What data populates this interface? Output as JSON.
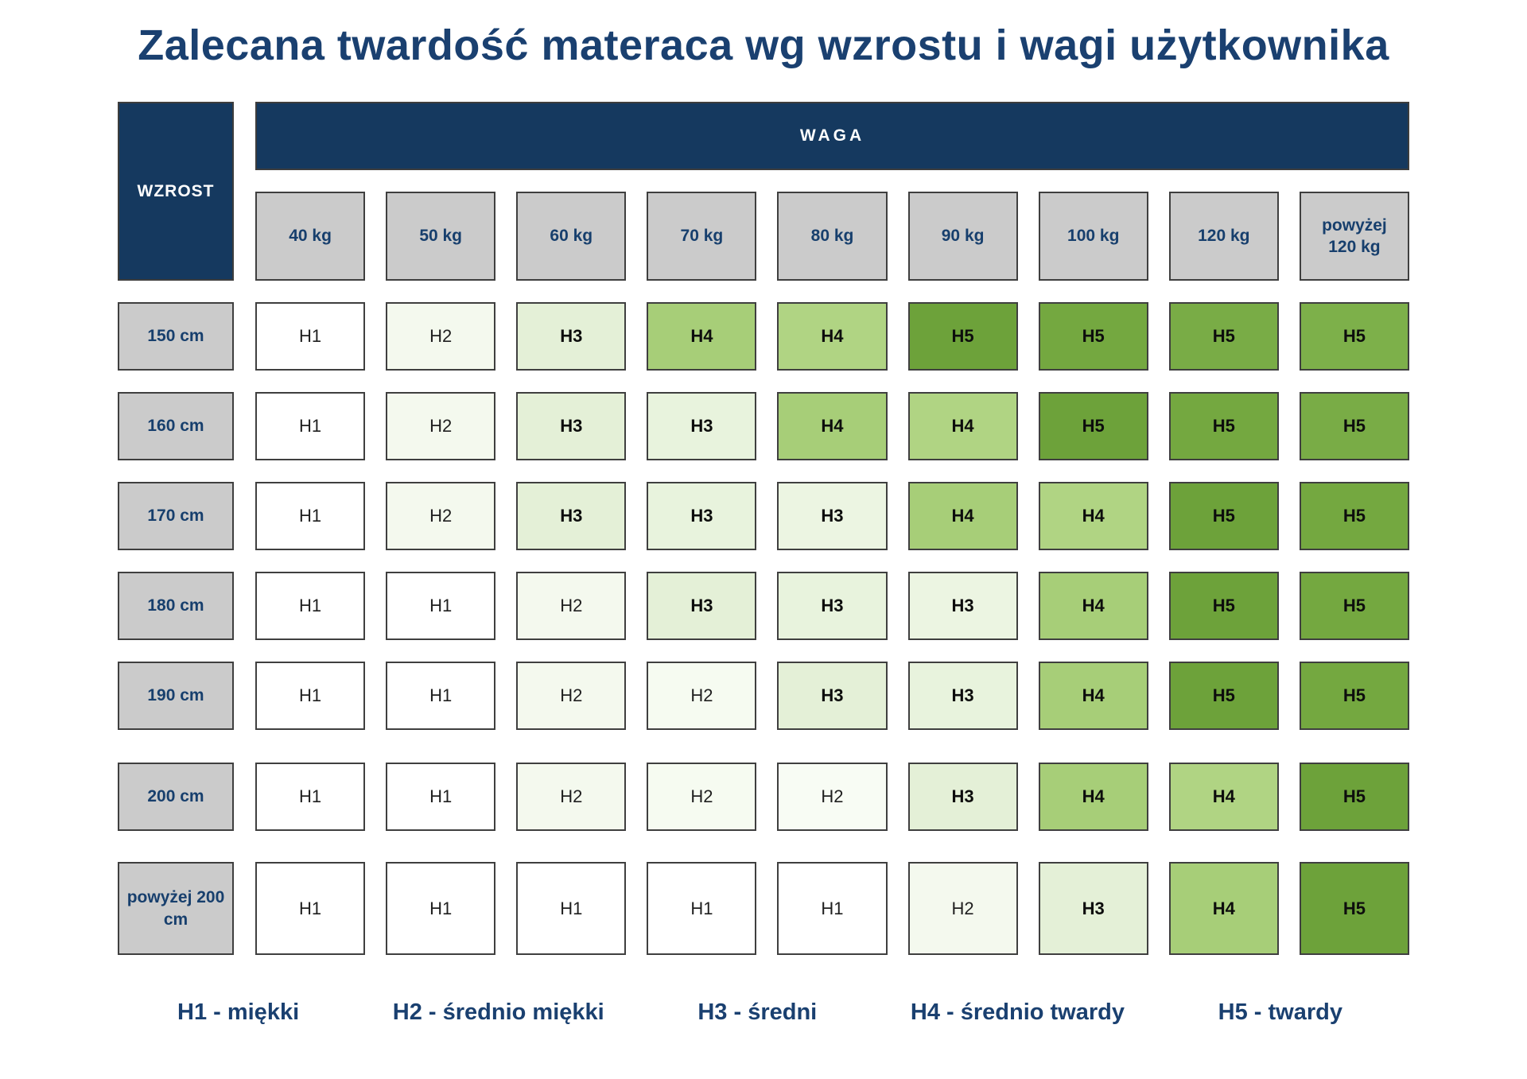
{
  "title": "Zalecana twardość materaca wg wzrostu i wagi użytkownika",
  "colors": {
    "navy_fill": "#15395f",
    "navy_text": "#1a4070",
    "header_gray": "#cbcbcb",
    "cell_border": "#3f3f3f",
    "h1_white": "#ffffff",
    "h5_dark_green": "#6da23a"
  },
  "chart_data": {
    "type": "heatmap",
    "title": "Zalecana twardość materaca wg wzrostu i wagi użytkownika",
    "xlabel": "WAGA",
    "ylabel": "WZROST",
    "x_categories": [
      "40 kg",
      "50 kg",
      "60 kg",
      "70 kg",
      "80 kg",
      "90 kg",
      "100 kg",
      "120 kg",
      "powyżej 120 kg"
    ],
    "y_categories": [
      "150 cm",
      "160 cm",
      "170 cm",
      "180 cm",
      "190 cm",
      "200 cm",
      "powyżej 200 cm"
    ],
    "values": [
      [
        "H1",
        "H2",
        "H3",
        "H4",
        "H4",
        "H5",
        "H5",
        "H5",
        "H5"
      ],
      [
        "H1",
        "H2",
        "H3",
        "H3",
        "H4",
        "H4",
        "H5",
        "H5",
        "H5"
      ],
      [
        "H1",
        "H2",
        "H3",
        "H3",
        "H3",
        "H4",
        "H4",
        "H5",
        "H5"
      ],
      [
        "H1",
        "H1",
        "H2",
        "H3",
        "H3",
        "H3",
        "H4",
        "H5",
        "H5"
      ],
      [
        "H1",
        "H1",
        "H2",
        "H2",
        "H3",
        "H3",
        "H4",
        "H5",
        "H5"
      ],
      [
        "H1",
        "H1",
        "H2",
        "H2",
        "H2",
        "H3",
        "H4",
        "H4",
        "H5"
      ],
      [
        "H1",
        "H1",
        "H1",
        "H1",
        "H1",
        "H2",
        "H3",
        "H4",
        "H5"
      ]
    ],
    "legend_position": "bottom"
  },
  "table": {
    "corner_label": "WZROST",
    "weight_band_label": "WAGA",
    "weight_headers": [
      "40 kg",
      "50 kg",
      "60 kg",
      "70 kg",
      "80 kg",
      "90 kg",
      "100 kg",
      "120 kg",
      "powyżej 120 kg"
    ],
    "rows": [
      {
        "height_label": "150 cm",
        "cells": [
          {
            "value": "H1",
            "bg": "#ffffff"
          },
          {
            "value": "H2",
            "bg": "#f4f9ee"
          },
          {
            "value": "H3",
            "bg": "#e4f0d7"
          },
          {
            "value": "H4",
            "bg": "#a7ce78"
          },
          {
            "value": "H4",
            "bg": "#b0d483"
          },
          {
            "value": "H5",
            "bg": "#6da23a"
          },
          {
            "value": "H5",
            "bg": "#74a840"
          },
          {
            "value": "H5",
            "bg": "#79ac46"
          },
          {
            "value": "H5",
            "bg": "#7db04a"
          }
        ]
      },
      {
        "height_label": "160 cm",
        "cells": [
          {
            "value": "H1",
            "bg": "#ffffff"
          },
          {
            "value": "H2",
            "bg": "#f4f9ee"
          },
          {
            "value": "H3",
            "bg": "#e4f0d7"
          },
          {
            "value": "H3",
            "bg": "#e8f3dd"
          },
          {
            "value": "H4",
            "bg": "#a7ce78"
          },
          {
            "value": "H4",
            "bg": "#b0d483"
          },
          {
            "value": "H5",
            "bg": "#6da23a"
          },
          {
            "value": "H5",
            "bg": "#74a840"
          },
          {
            "value": "H5",
            "bg": "#79ac46"
          }
        ]
      },
      {
        "height_label": "170 cm",
        "cells": [
          {
            "value": "H1",
            "bg": "#ffffff"
          },
          {
            "value": "H2",
            "bg": "#f4f9ee"
          },
          {
            "value": "H3",
            "bg": "#e4f0d7"
          },
          {
            "value": "H3",
            "bg": "#e8f3dd"
          },
          {
            "value": "H3",
            "bg": "#ecf5e2"
          },
          {
            "value": "H4",
            "bg": "#a7ce78"
          },
          {
            "value": "H4",
            "bg": "#b0d483"
          },
          {
            "value": "H5",
            "bg": "#6da23a"
          },
          {
            "value": "H5",
            "bg": "#74a840"
          }
        ]
      },
      {
        "height_label": "180 cm",
        "cells": [
          {
            "value": "H1",
            "bg": "#ffffff"
          },
          {
            "value": "H1",
            "bg": "#ffffff"
          },
          {
            "value": "H2",
            "bg": "#f4f9ee"
          },
          {
            "value": "H3",
            "bg": "#e4f0d7"
          },
          {
            "value": "H3",
            "bg": "#e8f3dd"
          },
          {
            "value": "H3",
            "bg": "#ecf5e2"
          },
          {
            "value": "H4",
            "bg": "#a7ce78"
          },
          {
            "value": "H5",
            "bg": "#6da23a"
          },
          {
            "value": "H5",
            "bg": "#74a840"
          }
        ]
      },
      {
        "height_label": "190 cm",
        "cells": [
          {
            "value": "H1",
            "bg": "#ffffff"
          },
          {
            "value": "H1",
            "bg": "#ffffff"
          },
          {
            "value": "H2",
            "bg": "#f4f9ee"
          },
          {
            "value": "H2",
            "bg": "#f6fbf1"
          },
          {
            "value": "H3",
            "bg": "#e4f0d7"
          },
          {
            "value": "H3",
            "bg": "#e8f3dd"
          },
          {
            "value": "H4",
            "bg": "#a7ce78"
          },
          {
            "value": "H5",
            "bg": "#6da23a"
          },
          {
            "value": "H5",
            "bg": "#74a840"
          }
        ]
      },
      {
        "height_label": "200 cm",
        "cells": [
          {
            "value": "H1",
            "bg": "#ffffff"
          },
          {
            "value": "H1",
            "bg": "#ffffff"
          },
          {
            "value": "H2",
            "bg": "#f4f9ee"
          },
          {
            "value": "H2",
            "bg": "#f6fbf1"
          },
          {
            "value": "H2",
            "bg": "#f8fcf4"
          },
          {
            "value": "H3",
            "bg": "#e4f0d7"
          },
          {
            "value": "H4",
            "bg": "#a7ce78"
          },
          {
            "value": "H4",
            "bg": "#b0d483"
          },
          {
            "value": "H5",
            "bg": "#6da23a"
          }
        ]
      },
      {
        "height_label": "powyżej 200 cm",
        "cells": [
          {
            "value": "H1",
            "bg": "#ffffff"
          },
          {
            "value": "H1",
            "bg": "#ffffff"
          },
          {
            "value": "H1",
            "bg": "#ffffff"
          },
          {
            "value": "H1",
            "bg": "#ffffff"
          },
          {
            "value": "H1",
            "bg": "#ffffff"
          },
          {
            "value": "H2",
            "bg": "#f4f9ee"
          },
          {
            "value": "H3",
            "bg": "#e4f0d7"
          },
          {
            "value": "H4",
            "bg": "#a7ce78"
          },
          {
            "value": "H5",
            "bg": "#6da23a"
          }
        ]
      }
    ]
  },
  "legend": {
    "items": [
      "H1 - miękki",
      "H2 - średnio miękki",
      "H3 - średni",
      "H4 - średnio twardy",
      "H5 - twardy"
    ]
  }
}
